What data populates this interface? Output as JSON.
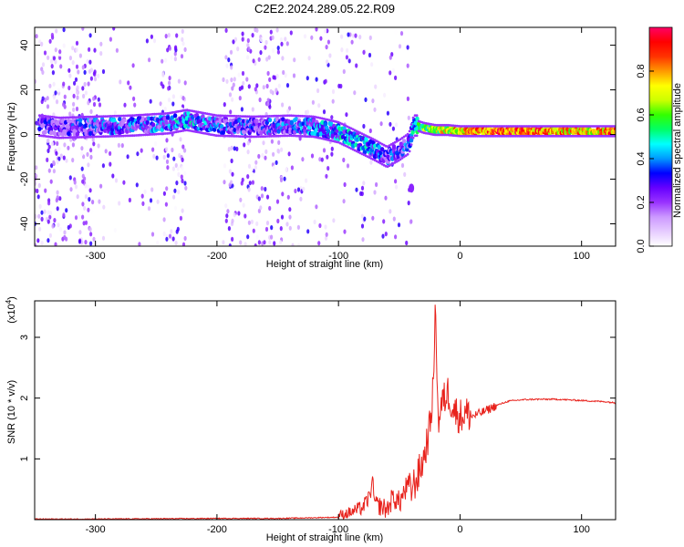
{
  "title": "C2E2.2024.289.05.22.R09",
  "chart_data": [
    {
      "type": "heatmap",
      "xlabel": "Height of straight line (km)",
      "ylabel": "Frequency (Hz)",
      "xlim": [
        -350,
        128
      ],
      "ylim": [
        -50,
        48
      ],
      "x_ticks": [
        -300,
        -200,
        -100,
        0,
        100
      ],
      "x_tick_labels": [
        "-300",
        "-200",
        "-100",
        "0",
        "100"
      ],
      "y_ticks": [
        -40,
        -20,
        0,
        20,
        40
      ],
      "y_tick_labels": [
        "-40",
        "-20",
        "0",
        "20",
        "40"
      ],
      "colorbar": {
        "label": "Normalized spectral amplitude",
        "range": [
          0,
          1
        ],
        "ticks": [
          0.0,
          0.2,
          0.4,
          0.6,
          0.8
        ],
        "tick_labels": [
          "0.0",
          "0.2",
          "0.4",
          "0.6",
          "0.8"
        ],
        "colormap": [
          "#ffffff",
          "#e6ccff",
          "#cc99ff",
          "#9933ff",
          "#6600ff",
          "#0000ff",
          "#0099ff",
          "#00ffff",
          "#00ff66",
          "#33ff00",
          "#ccff00",
          "#ffff00",
          "#ff9900",
          "#ff3300",
          "#ff0000",
          "#ff0066"
        ]
      },
      "ridge": {
        "x": [
          -345,
          -330,
          -300,
          -270,
          -240,
          -225,
          -200,
          -170,
          -140,
          -120,
          -100,
          -85,
          -70,
          -60,
          -50,
          -42,
          -38,
          -35,
          -30,
          -20,
          -10,
          0,
          20,
          60,
          100,
          128
        ],
        "y": [
          4,
          3,
          3.5,
          4,
          5,
          6.5,
          4,
          3.5,
          4,
          3.5,
          1,
          -3,
          -7,
          -10,
          -7,
          -4,
          4,
          4,
          3,
          2,
          2,
          1.5,
          1.5,
          1.5,
          1.5,
          1.5
        ],
        "amplitude": [
          0.4,
          0.35,
          0.45,
          0.45,
          0.5,
          0.55,
          0.45,
          0.4,
          0.45,
          0.5,
          0.55,
          0.55,
          0.5,
          0.4,
          0.45,
          0.45,
          0.55,
          0.7,
          0.75,
          0.8,
          0.85,
          0.95,
          1,
          1,
          0.9,
          1
        ]
      },
      "outlier": {
        "x": -40,
        "y": -24
      }
    },
    {
      "type": "line",
      "xlabel": "Height of straight line (km)",
      "ylabel": "SNR (10 * v/v)",
      "y_multiplier_label": "(x10",
      "y_multiplier_exp": "4",
      "y_multiplier_close": ")",
      "xlim": [
        -350,
        128
      ],
      "ylim": [
        0,
        3.6
      ],
      "x_ticks": [
        -300,
        -200,
        -100,
        0,
        100
      ],
      "x_tick_labels": [
        "-300",
        "-200",
        "-100",
        "0",
        "100"
      ],
      "y_ticks": [
        1,
        2,
        3
      ],
      "y_tick_labels": [
        "1",
        "2",
        "3"
      ],
      "color": "#e8221c",
      "series": [
        {
          "x": [
            -350,
            -300,
            -250,
            -200,
            -150,
            -100,
            -90,
            -80,
            -75,
            -72,
            -70,
            -60,
            -55,
            -50,
            -45,
            -40,
            -35,
            -30,
            -25,
            -22,
            -20,
            -19,
            -18,
            -15,
            -10,
            -5,
            0,
            5,
            10,
            20,
            30,
            40,
            50,
            60,
            70,
            80,
            90,
            100,
            110,
            120,
            128
          ],
          "y": [
            0.01,
            0.01,
            0.015,
            0.02,
            0.02,
            0.04,
            0.08,
            0.15,
            0.3,
            0.55,
            0.2,
            0.1,
            0.3,
            0.2,
            0.4,
            0.5,
            0.7,
            1.0,
            1.5,
            2.2,
            3.6,
            2.5,
            1.6,
            1.9,
            2.1,
            1.8,
            1.7,
            1.75,
            1.7,
            1.78,
            1.88,
            1.95,
            1.97,
            1.98,
            1.98,
            1.98,
            1.97,
            1.96,
            1.95,
            1.94,
            1.92
          ]
        }
      ]
    }
  ]
}
